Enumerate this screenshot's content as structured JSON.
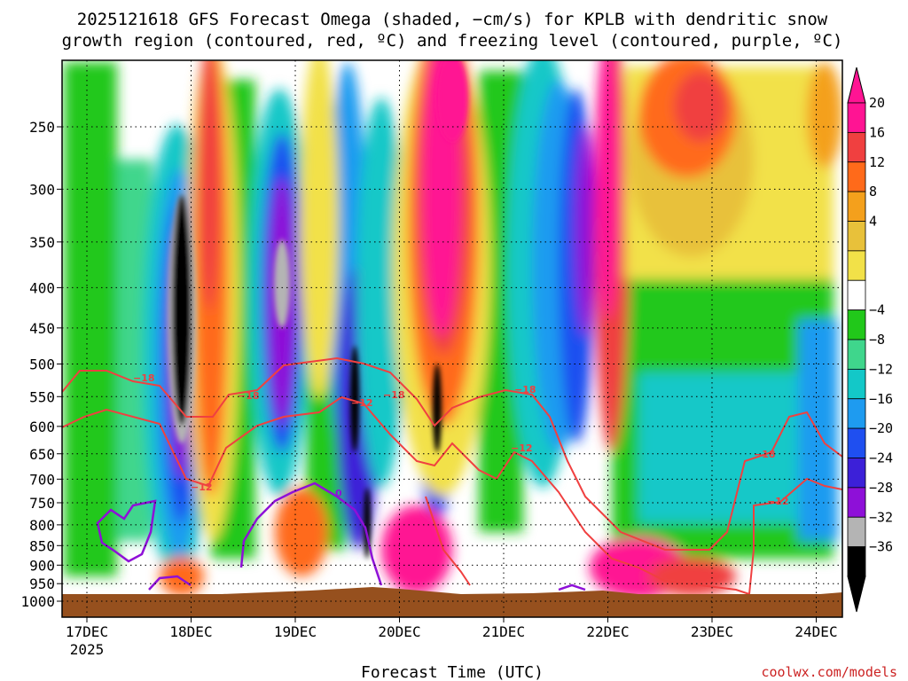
{
  "chart_data": {
    "type": "heatmap",
    "title_line1": "2025121618 GFS Forecast Omega (shaded, −cm/s) for KPLB with dendritic snow",
    "title_line2": "growth region (contoured, red, ºC) and freezing level (contoured, purple, ºC)",
    "xlabel": "Forecast Time (UTC)",
    "ylabel": "",
    "x_ticks": [
      "17DEC",
      "18DEC",
      "19DEC",
      "20DEC",
      "21DEC",
      "22DEC",
      "23DEC",
      "24DEC"
    ],
    "x_year": "2025",
    "y_axis_hpa_range": [
      1000,
      200
    ],
    "y_ticks": [
      250,
      300,
      350,
      400,
      450,
      500,
      550,
      600,
      650,
      700,
      750,
      800,
      850,
      900,
      950,
      1000
    ],
    "colorbar_labels": [
      "20",
      "16",
      "12",
      "8",
      "4",
      "−4",
      "−8",
      "−12",
      "−16",
      "−20",
      "−24",
      "−28",
      "−32",
      "−36"
    ],
    "colorbar_colors": [
      "#ff1493",
      "#f04040",
      "#ff6a1a",
      "#f4a01c",
      "#e8c13a",
      "#f2e148",
      "#ffffff",
      "#21c81a",
      "#3fd68c",
      "#13c8c8",
      "#1e9bf0",
      "#1f4ff0",
      "#3c20d8",
      "#8e10d8",
      "#b4b4b4",
      "#000000"
    ],
    "contour_labels": {
      "red_dgz_upper": "−18",
      "red_dgz_lower": "−12",
      "purple_freezing": "0"
    },
    "vertical_motion_features": [
      {
        "time_day": 17.85,
        "pressure_top": 290,
        "pressure_bottom": 640,
        "peak": "−36 (black core)"
      },
      {
        "time_day": 18.2,
        "pressure_top": 200,
        "pressure_bottom": 950,
        "peak": "16 to 20"
      },
      {
        "time_day": 19.0,
        "pressure_top": 220,
        "pressure_bottom": 600,
        "peak": "−32"
      },
      {
        "time_day": 19.7,
        "pressure_top": 400,
        "pressure_bottom": 900,
        "peak": "−36"
      },
      {
        "time_day": 20.35,
        "pressure_top": 200,
        "pressure_bottom": 950,
        "peak": "20"
      },
      {
        "time_day": 21.8,
        "pressure_top": 200,
        "pressure_bottom": 950,
        "peak": "20"
      }
    ]
  },
  "credit": "coolwx.com/models"
}
